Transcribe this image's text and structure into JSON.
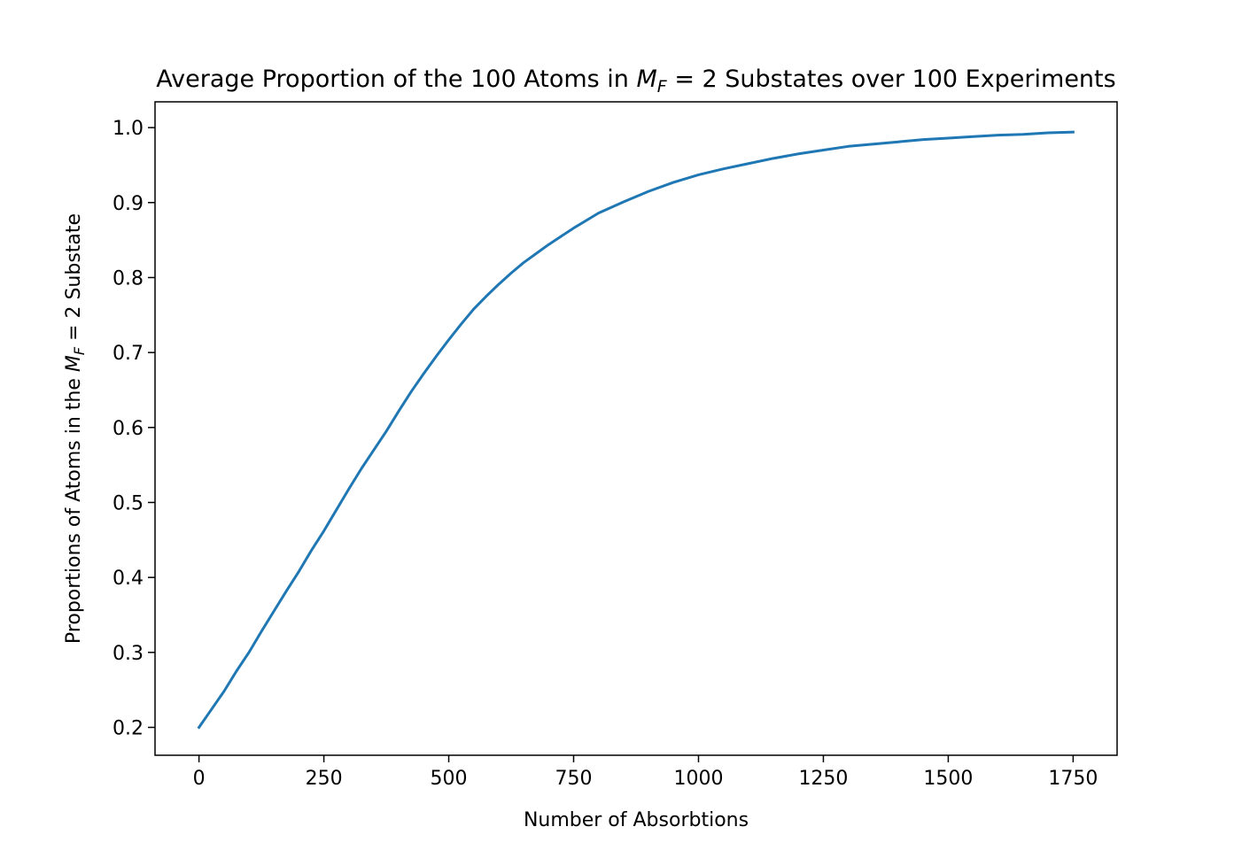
{
  "chart_data": {
    "type": "line",
    "title": {
      "before": "Average Proportion of the 100 Atoms in ",
      "math_main": "M",
      "math_sub": "F",
      "math_rest": " = 2",
      "after": " Substates over 100 Experiments"
    },
    "xlabel": "Number of Absorbtions",
    "ylabel": {
      "before": "Proportions of Atoms in the ",
      "math_main": "M",
      "math_sub": "F",
      "math_rest": " = 2",
      "after": " Substate"
    },
    "xlim": [
      -88,
      1838
    ],
    "ylim": [
      0.1628,
      1.0344
    ],
    "xticks": [
      {
        "value": 0,
        "label": "0"
      },
      {
        "value": 250,
        "label": "250"
      },
      {
        "value": 500,
        "label": "500"
      },
      {
        "value": 750,
        "label": "750"
      },
      {
        "value": 1000,
        "label": "1000"
      },
      {
        "value": 1250,
        "label": "1250"
      },
      {
        "value": 1500,
        "label": "1500"
      },
      {
        "value": 1750,
        "label": "1750"
      }
    ],
    "yticks": [
      {
        "value": 0.2,
        "label": "0.2"
      },
      {
        "value": 0.3,
        "label": "0.3"
      },
      {
        "value": 0.4,
        "label": "0.4"
      },
      {
        "value": 0.5,
        "label": "0.5"
      },
      {
        "value": 0.6,
        "label": "0.6"
      },
      {
        "value": 0.7,
        "label": "0.7"
      },
      {
        "value": 0.8,
        "label": "0.8"
      },
      {
        "value": 0.9,
        "label": "0.9"
      },
      {
        "value": 1.0,
        "label": "1.0"
      }
    ],
    "grid": false,
    "series": [
      {
        "color": "#1f77b4",
        "x": [
          0,
          25,
          50,
          75,
          100,
          125,
          150,
          175,
          200,
          225,
          250,
          275,
          300,
          325,
          350,
          375,
          400,
          425,
          450,
          475,
          500,
          525,
          550,
          575,
          600,
          625,
          650,
          675,
          700,
          750,
          800,
          850,
          900,
          950,
          1000,
          1050,
          1100,
          1150,
          1200,
          1250,
          1300,
          1350,
          1400,
          1450,
          1500,
          1550,
          1600,
          1650,
          1700,
          1750
        ],
        "y": [
          0.2,
          0.224,
          0.248,
          0.275,
          0.3,
          0.328,
          0.355,
          0.382,
          0.408,
          0.436,
          0.462,
          0.49,
          0.518,
          0.545,
          0.57,
          0.595,
          0.622,
          0.648,
          0.672,
          0.695,
          0.717,
          0.738,
          0.758,
          0.775,
          0.791,
          0.806,
          0.82,
          0.832,
          0.844,
          0.866,
          0.886,
          0.901,
          0.915,
          0.927,
          0.937,
          0.945,
          0.952,
          0.959,
          0.965,
          0.97,
          0.975,
          0.978,
          0.981,
          0.984,
          0.986,
          0.988,
          0.99,
          0.991,
          0.993,
          0.994
        ]
      }
    ]
  }
}
